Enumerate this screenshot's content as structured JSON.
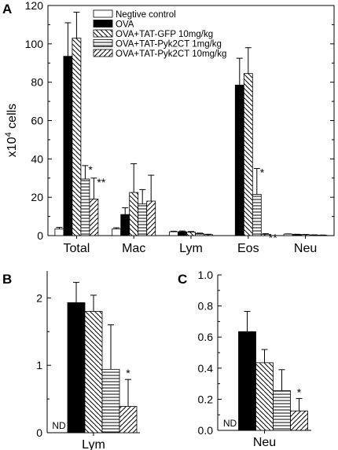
{
  "chart_data": [
    {
      "panel": "A",
      "type": "bar",
      "categories": [
        "Total",
        "Mac",
        "Lym",
        "Eos",
        "Neu"
      ],
      "ylabel_base": "x10",
      "ylabel_exp": "4",
      "ylabel_unit": " cells",
      "ylim": [
        0,
        120
      ],
      "yticks": [
        "0",
        "20",
        "40",
        "60",
        "80",
        "100",
        "120"
      ],
      "series": [
        {
          "name": "Negtive control",
          "pattern": "white",
          "values": [
            3.5,
            3.5,
            2.0,
            0.0,
            0.8
          ],
          "errors": [
            0.8,
            0.6,
            0.3,
            0,
            0.1
          ]
        },
        {
          "name": "OVA",
          "pattern": "black",
          "values": [
            93.5,
            11.0,
            2.0,
            78.5,
            0.6
          ],
          "errors": [
            17.5,
            3.5,
            0.4,
            14.0,
            0.1
          ]
        },
        {
          "name": "OVA+TAT-GFP 10mg/kg",
          "pattern": "diag-back",
          "values": [
            103.0,
            22.5,
            1.8,
            84.5,
            0.5
          ],
          "errors": [
            13.5,
            15.0,
            0.3,
            13.5,
            0.1
          ]
        },
        {
          "name": "OVA+TAT-Pyk2CT 1mg/kg",
          "pattern": "horiz",
          "values": [
            29.5,
            16.5,
            1.0,
            21.5,
            0.3
          ],
          "errors": [
            7.0,
            7.5,
            0.3,
            13.5,
            0.1
          ]
        },
        {
          "name": "OVA+TAT-Pyk2CT 10mg/kg",
          "pattern": "diag-fwd",
          "values": [
            19.0,
            18.0,
            0.5,
            0.7,
            0.2
          ],
          "errors": [
            11.0,
            13.5,
            0.2,
            0.3,
            0.1
          ]
        }
      ],
      "annotations": [
        {
          "category": "Total",
          "series": 3,
          "text": "*"
        },
        {
          "category": "Total",
          "series": 4,
          "text": "**"
        },
        {
          "category": "Eos",
          "series": 3,
          "text": "*"
        },
        {
          "category": "Eos",
          "series": 4,
          "text": "**"
        }
      ],
      "legend_position": "top-left"
    },
    {
      "panel": "B",
      "type": "bar",
      "categories": [
        "Lym"
      ],
      "ylim": [
        0,
        2.4
      ],
      "yticks": [
        "0",
        "1",
        "2"
      ],
      "series_values": [
        0,
        1.93,
        1.8,
        0.94,
        0.39
      ],
      "errors": [
        0,
        0.3,
        0.24,
        0.66,
        0.4
      ],
      "nd_label": "ND",
      "annotation": "*"
    },
    {
      "panel": "C",
      "type": "bar",
      "categories": [
        "Neu"
      ],
      "ylim": [
        0,
        1.0
      ],
      "yticks": [
        "0.0",
        "0.2",
        "0.4",
        "0.6",
        "0.8",
        "1.0"
      ],
      "series_values": [
        0,
        0.635,
        0.435,
        0.255,
        0.125
      ],
      "errors": [
        0,
        0.13,
        0.085,
        0.135,
        0.08
      ],
      "nd_label": "ND",
      "annotation": "*"
    }
  ]
}
